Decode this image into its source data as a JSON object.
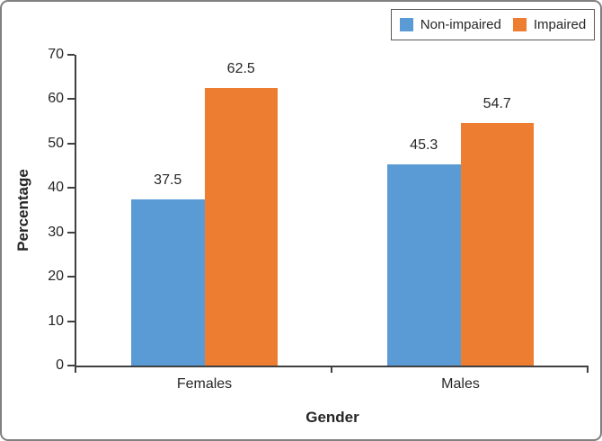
{
  "figure": {
    "background": "#ffffff",
    "border_color": "#808080"
  },
  "chart_data": {
    "type": "bar",
    "title": "",
    "xlabel": "Gender",
    "ylabel": "Percentage",
    "categories": [
      "Females",
      "Males"
    ],
    "series": [
      {
        "name": "Non-impaired",
        "color": "#5B9BD5",
        "values": [
          37.5,
          45.3
        ],
        "data_labels": [
          "37.5",
          "45.3"
        ]
      },
      {
        "name": "Impaired",
        "color": "#ED7D31",
        "values": [
          62.5,
          54.7
        ],
        "data_labels": [
          "62.5",
          "54.7"
        ]
      }
    ],
    "ylim": [
      0,
      70
    ],
    "yticks": [
      0,
      10,
      20,
      30,
      40,
      50,
      60,
      70
    ],
    "grid": false,
    "legend_position": "top-right",
    "axis_color": "#404040",
    "text_color": "#262626"
  }
}
